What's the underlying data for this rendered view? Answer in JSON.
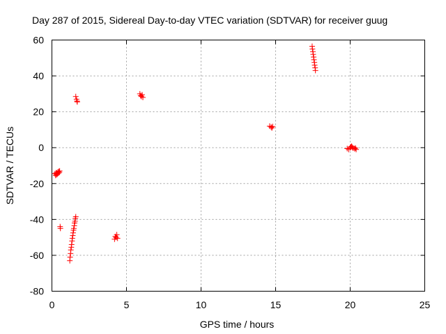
{
  "chart_data": {
    "type": "scatter",
    "title": "Day 287 of 2015, Sidereal Day-to-day VTEC variation (SDTVAR) for receiver guug",
    "xlabel": "GPS time / hours",
    "ylabel": "SDTVAR / TECUs",
    "xlim": [
      0,
      25
    ],
    "ylim": [
      -80,
      60
    ],
    "xticks": [
      "0",
      "5",
      "10",
      "15",
      "20",
      "25"
    ],
    "yticks": [
      "60",
      "40",
      "20",
      "0",
      "-20",
      "-40",
      "-60",
      "-80"
    ],
    "grid": true,
    "marker": "plus",
    "color": "#ff0000",
    "series": [
      {
        "points": [
          [
            0.2,
            -14.5
          ],
          [
            0.25,
            -15.5
          ],
          [
            0.28,
            -14
          ],
          [
            0.3,
            -15
          ],
          [
            0.33,
            -14.2
          ],
          [
            0.36,
            -14.8
          ],
          [
            0.4,
            -13.5
          ],
          [
            0.43,
            -14.3
          ],
          [
            0.46,
            -13.2
          ],
          [
            0.5,
            -13.8
          ],
          [
            0.52,
            -13
          ],
          [
            0.55,
            -44
          ],
          [
            0.57,
            -45
          ],
          [
            1.2,
            -63
          ],
          [
            1.22,
            -61
          ],
          [
            1.25,
            -59
          ],
          [
            1.27,
            -57
          ],
          [
            1.3,
            -55.5
          ],
          [
            1.32,
            -54
          ],
          [
            1.35,
            -52
          ],
          [
            1.37,
            -50.5
          ],
          [
            1.4,
            -49
          ],
          [
            1.42,
            -47.5
          ],
          [
            1.45,
            -46
          ],
          [
            1.47,
            -45
          ],
          [
            1.5,
            -43.5
          ],
          [
            1.52,
            -42
          ],
          [
            1.55,
            -41
          ],
          [
            1.57,
            -39.5
          ],
          [
            1.6,
            -38.5
          ],
          [
            1.6,
            28.5
          ],
          [
            1.65,
            27
          ],
          [
            1.68,
            26
          ],
          [
            1.7,
            25.5
          ],
          [
            4.2,
            -51
          ],
          [
            4.25,
            -49.5
          ],
          [
            4.3,
            -50
          ],
          [
            4.35,
            -48.5
          ],
          [
            4.4,
            -50.5
          ],
          [
            5.9,
            30
          ],
          [
            5.95,
            29
          ],
          [
            6.0,
            28.5
          ],
          [
            6.05,
            29.5
          ],
          [
            6.1,
            28
          ],
          [
            14.6,
            12
          ],
          [
            14.7,
            11.5
          ],
          [
            14.75,
            11
          ],
          [
            14.8,
            11.8
          ],
          [
            17.45,
            56.5
          ],
          [
            17.47,
            55
          ],
          [
            17.5,
            53.5
          ],
          [
            17.52,
            52
          ],
          [
            17.55,
            50.5
          ],
          [
            17.57,
            49
          ],
          [
            17.6,
            47.5
          ],
          [
            17.62,
            46
          ],
          [
            17.65,
            44.5
          ],
          [
            17.67,
            43
          ],
          [
            19.8,
            -0.5
          ],
          [
            19.9,
            -1
          ],
          [
            20.0,
            0
          ],
          [
            20.05,
            0.5
          ],
          [
            20.1,
            0.8
          ],
          [
            20.15,
            0.2
          ],
          [
            20.2,
            -0.3
          ],
          [
            20.3,
            -0.6
          ],
          [
            20.35,
            -0.2
          ],
          [
            20.4,
            -1
          ]
        ]
      }
    ]
  }
}
